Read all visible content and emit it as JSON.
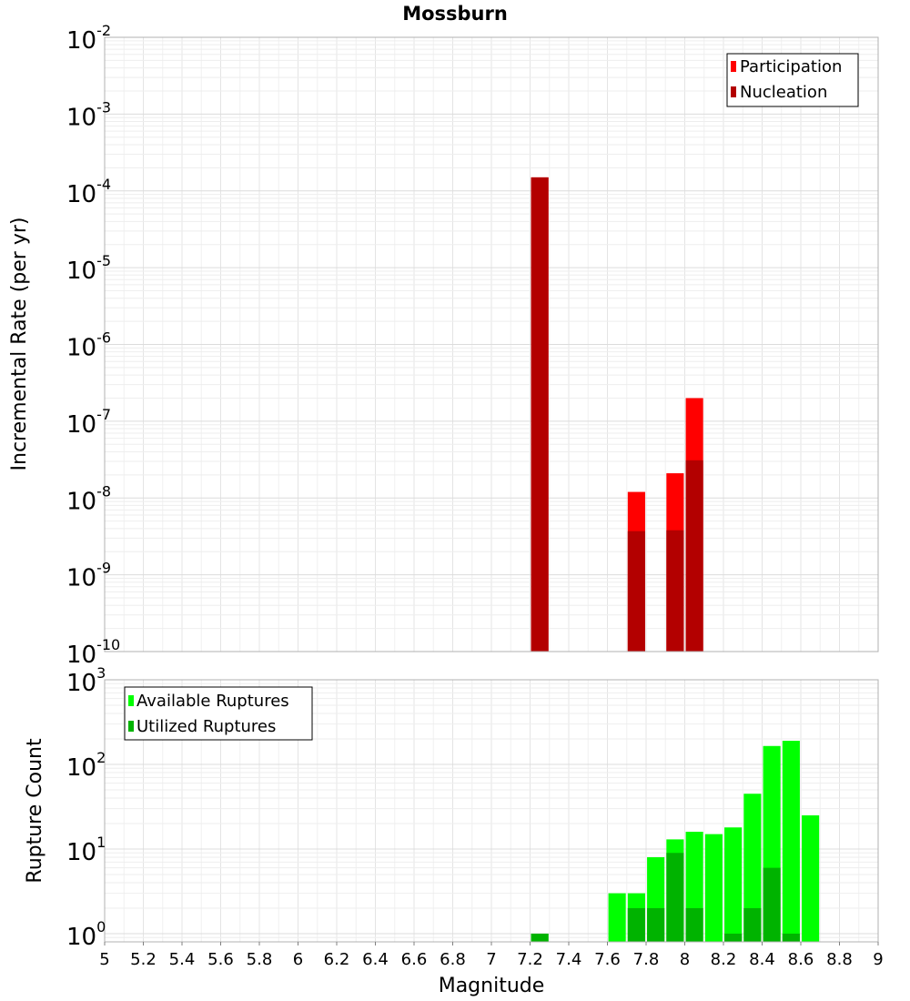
{
  "chart_data": [
    {
      "type": "bar",
      "title": "Mossburn",
      "ylabel": "Incremental Rate (per yr)",
      "xlabel": "",
      "yscale": "log",
      "ylim": [
        1e-10,
        0.01
      ],
      "xlim": [
        5,
        9
      ],
      "grid": true,
      "legend_position": "top-right",
      "bar_width": 0.09,
      "y_ticks": [
        {
          "base": "10",
          "exp": "-2"
        },
        {
          "base": "10",
          "exp": "-3"
        },
        {
          "base": "10",
          "exp": "-4"
        },
        {
          "base": "10",
          "exp": "-5"
        },
        {
          "base": "10",
          "exp": "-6"
        },
        {
          "base": "10",
          "exp": "-7"
        },
        {
          "base": "10",
          "exp": "-8"
        },
        {
          "base": "10",
          "exp": "-9"
        },
        {
          "base": "10",
          "exp": "-10"
        }
      ],
      "series": [
        {
          "name": "Participation",
          "color": "#ff0000",
          "x": [
            7.25,
            7.75,
            7.95,
            8.05
          ],
          "values": [
            0.00015,
            1.2e-08,
            2.1e-08,
            2e-07
          ]
        },
        {
          "name": "Nucleation",
          "color": "#b30000",
          "x": [
            7.25,
            7.75,
            7.95,
            8.05
          ],
          "values": [
            0.00015,
            3.7e-09,
            3.8e-09,
            3.1e-08
          ]
        }
      ]
    },
    {
      "type": "bar",
      "title": "",
      "ylabel": "Rupture Count",
      "xlabel": "Magnitude",
      "yscale": "log",
      "ylim": [
        0.8,
        1000
      ],
      "xlim": [
        5,
        9
      ],
      "grid": true,
      "legend_position": "top-left",
      "bar_width": 0.09,
      "x_tick_labels": [
        "5",
        "5.2",
        "5.4",
        "5.6",
        "5.8",
        "6",
        "6.2",
        "6.4",
        "6.6",
        "6.8",
        "7",
        "7.2",
        "7.4",
        "7.6",
        "7.8",
        "8",
        "8.2",
        "8.4",
        "8.6",
        "8.8",
        "9"
      ],
      "y_ticks": [
        {
          "base": "10",
          "exp": "3"
        },
        {
          "base": "10",
          "exp": "2"
        },
        {
          "base": "10",
          "exp": "1"
        },
        {
          "base": "10",
          "exp": "0"
        }
      ],
      "series": [
        {
          "name": "Available Ruptures",
          "color": "#00ff00",
          "x": [
            7.25,
            7.65,
            7.75,
            7.85,
            7.95,
            8.05,
            8.15,
            8.25,
            8.35,
            8.45,
            8.55,
            8.65
          ],
          "values": [
            1,
            3,
            3,
            8,
            13,
            16,
            15,
            18,
            45,
            165,
            190,
            25
          ]
        },
        {
          "name": "Utilized Ruptures",
          "color": "#00b300",
          "x": [
            7.25,
            7.65,
            7.75,
            7.85,
            7.95,
            8.05,
            8.15,
            8.25,
            8.35,
            8.45,
            8.55,
            8.65
          ],
          "values": [
            1,
            0,
            2,
            2,
            9,
            2,
            0,
            1,
            2,
            6,
            1,
            0
          ]
        }
      ]
    }
  ]
}
